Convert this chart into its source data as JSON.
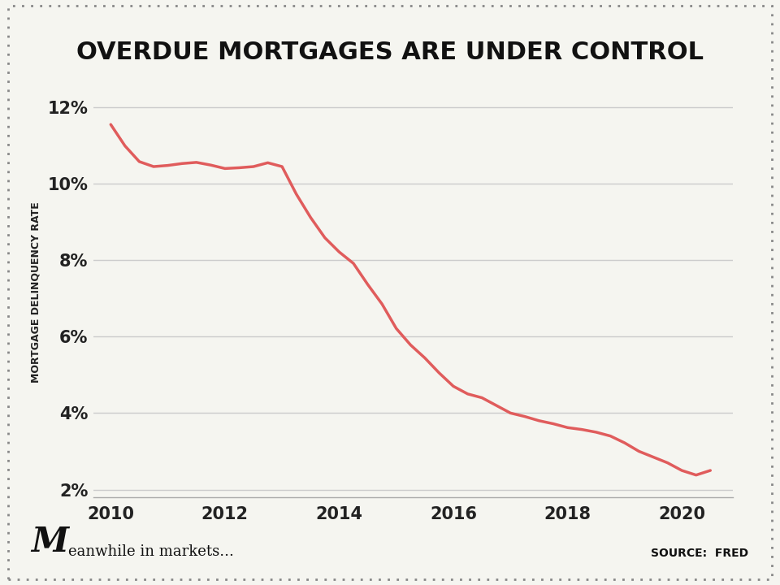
{
  "title": "OVERDUE MORTGAGES ARE UNDER CONTROL",
  "ylabel": "MORTGAGE DELINQUENCY RATE",
  "source_text": "SOURCE:  FRED",
  "brand_text": "eanwhile in markets...",
  "background_color": "#f5f5f0",
  "line_color": "#e05c5c",
  "grid_color": "#cccccc",
  "x_values": [
    2010.0,
    2010.25,
    2010.5,
    2010.75,
    2011.0,
    2011.25,
    2011.5,
    2011.75,
    2012.0,
    2012.25,
    2012.5,
    2012.75,
    2013.0,
    2013.25,
    2013.5,
    2013.75,
    2014.0,
    2014.25,
    2014.5,
    2014.75,
    2015.0,
    2015.25,
    2015.5,
    2015.75,
    2016.0,
    2016.25,
    2016.5,
    2016.75,
    2017.0,
    2017.25,
    2017.5,
    2017.75,
    2018.0,
    2018.25,
    2018.5,
    2018.75,
    2019.0,
    2019.25,
    2019.5,
    2019.75,
    2020.0,
    2020.25,
    2020.5
  ],
  "y_values": [
    11.54,
    10.98,
    10.57,
    10.44,
    10.47,
    10.52,
    10.55,
    10.48,
    10.39,
    10.41,
    10.44,
    10.54,
    10.44,
    9.72,
    9.11,
    8.58,
    8.21,
    7.91,
    7.36,
    6.85,
    6.21,
    5.78,
    5.44,
    5.05,
    4.7,
    4.5,
    4.4,
    4.2,
    4.0,
    3.91,
    3.8,
    3.72,
    3.62,
    3.57,
    3.5,
    3.4,
    3.22,
    3.0,
    2.85,
    2.7,
    2.5,
    2.38,
    2.5
  ],
  "yticks": [
    2,
    4,
    6,
    8,
    10,
    12
  ],
  "xticks": [
    2010,
    2012,
    2014,
    2016,
    2018,
    2020
  ],
  "xlim": [
    2009.7,
    2020.9
  ],
  "ylim": [
    1.8,
    12.5
  ]
}
